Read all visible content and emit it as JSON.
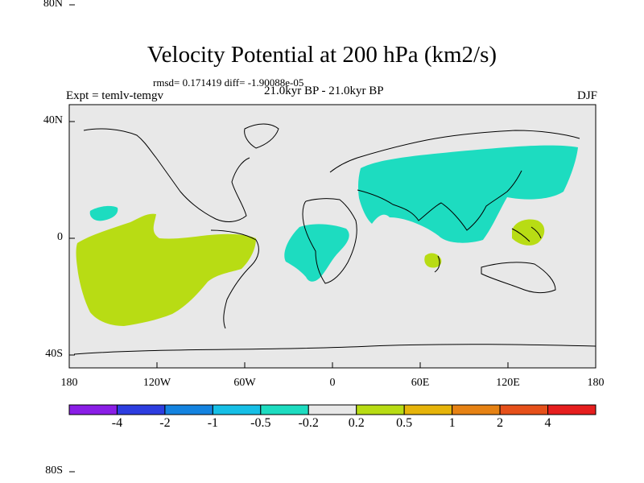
{
  "title": "Velocity Potential at 200 hPa (km2/s)",
  "stats": "rmsd= 0.171419 diff= -1.90088e-05",
  "experiment": "Expt = temlv-temgv",
  "period": "21.0kyr BP - 21.0kyr BP",
  "season": "DJF",
  "y_axis_labels": [
    "80N",
    "40N",
    "0",
    "40S",
    "80S"
  ],
  "x_axis_labels": [
    "180",
    "120W",
    "60W",
    "0",
    "60E",
    "120E",
    "180"
  ],
  "colorbar": {
    "colors": [
      "#8a1ee6",
      "#2d3de0",
      "#1483e0",
      "#16bfe6",
      "#1ddcc0",
      "#e8e8e8",
      "#b8dc14",
      "#e6b40a",
      "#e68214",
      "#e6501a",
      "#e61e1e"
    ],
    "labels": [
      "-4",
      "-2",
      "-1",
      "-0.5",
      "-0.2",
      "0.2",
      "0.5",
      "1",
      "2",
      "4"
    ]
  },
  "colors": {
    "ocean_background": "#e8e8e8",
    "negative_anomaly": "#1ddcc0",
    "positive_anomaly": "#b8dc14"
  }
}
